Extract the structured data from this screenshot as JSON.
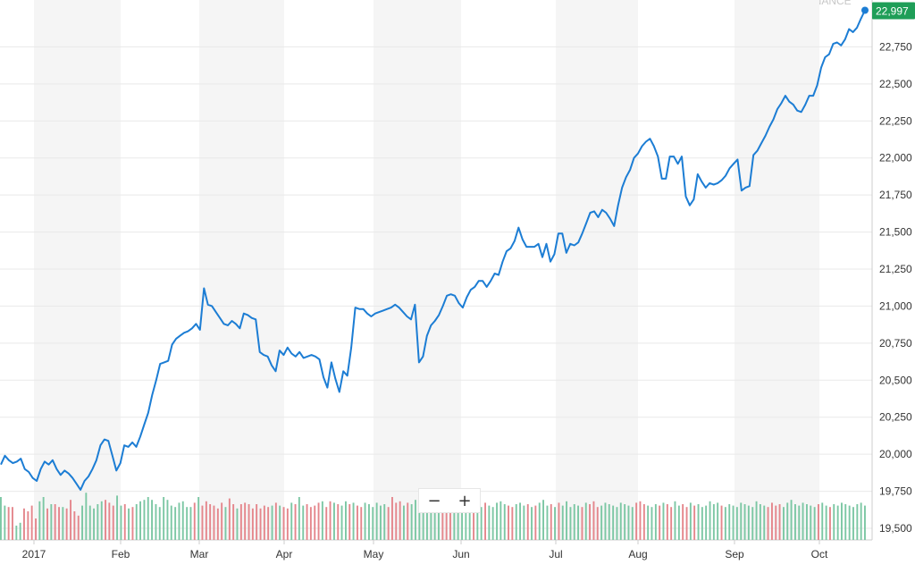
{
  "chart_data": {
    "type": "line",
    "x_labels": [
      "2017",
      "Feb",
      "Mar",
      "Apr",
      "May",
      "Jun",
      "Jul",
      "Aug",
      "Sep",
      "Oct"
    ],
    "y_ticks": [
      "19,500",
      "19,750",
      "20,000",
      "20,250",
      "20,500",
      "20,750",
      "21,000",
      "21,250",
      "21,500",
      "21,750",
      "22,000",
      "22,250",
      "22,500",
      "22,750"
    ],
    "ylim": [
      19500,
      23000
    ],
    "last_value": 22997,
    "last_label": "22,997",
    "series": [
      {
        "values": [
          19930,
          19990,
          19960,
          19940,
          19950,
          19970,
          19900,
          19880,
          19840,
          19820,
          19900,
          19950,
          19930,
          19960,
          19900,
          19860,
          19890,
          19870,
          19840,
          19800,
          19760,
          19820,
          19850,
          19900,
          19960,
          20060,
          20100,
          20090,
          19990,
          19890,
          19940,
          20060,
          20050,
          20080,
          20050,
          20120,
          20200,
          20280,
          20400,
          20500,
          20610,
          20620,
          20630,
          20740,
          20780,
          20800,
          20820,
          20830,
          20850,
          20880,
          20840,
          21120,
          21010,
          21000,
          20960,
          20920,
          20880,
          20870,
          20900,
          20880,
          20850,
          20950,
          20940,
          20920,
          20910,
          20690,
          20670,
          20660,
          20600,
          20560,
          20700,
          20670,
          20720,
          20680,
          20660,
          20690,
          20650,
          20660,
          20670,
          20660,
          20640,
          20520,
          20450,
          20620,
          20510,
          20420,
          20560,
          20530,
          20720,
          20990,
          20980,
          20980,
          20950,
          20930,
          20950,
          20960,
          20970,
          20980,
          20990,
          21010,
          20990,
          20960,
          20930,
          20910,
          21010,
          20620,
          20660,
          20800,
          20870,
          20900,
          20940,
          21000,
          21070,
          21080,
          21070,
          21020,
          20990,
          21060,
          21110,
          21130,
          21170,
          21170,
          21130,
          21170,
          21220,
          21210,
          21300,
          21370,
          21390,
          21440,
          21530,
          21450,
          21400,
          21400,
          21400,
          21420,
          21330,
          21420,
          21300,
          21350,
          21490,
          21490,
          21360,
          21420,
          21410,
          21430,
          21490,
          21560,
          21630,
          21640,
          21600,
          21650,
          21630,
          21590,
          21540,
          21680,
          21800,
          21870,
          21920,
          22000,
          22030,
          22080,
          22110,
          22130,
          22080,
          22010,
          21860,
          21860,
          22010,
          22010,
          21960,
          22010,
          21740,
          21680,
          21720,
          21890,
          21840,
          21800,
          21830,
          21820,
          21830,
          21850,
          21880,
          21930,
          21960,
          21990,
          21780,
          21800,
          21810,
          22020,
          22050,
          22100,
          22150,
          22210,
          22260,
          22330,
          22370,
          22420,
          22380,
          22360,
          22320,
          22310,
          22360,
          22420,
          22420,
          22490,
          22610,
          22680,
          22700,
          22770,
          22780,
          22760,
          22800,
          22870,
          22850,
          22880,
          22940,
          22997
        ]
      },
      {
        "name": "volume",
        "values": [
          0.3,
          0.24,
          0.23,
          0.23,
          0.1,
          0.12,
          0.22,
          0.2,
          0.24,
          0.15,
          0.27,
          0.3,
          0.22,
          0.25,
          0.25,
          0.23,
          0.23,
          0.22,
          0.28,
          0.2,
          0.17,
          0.24,
          0.33,
          0.24,
          0.22,
          0.25,
          0.27,
          0.28,
          0.26,
          0.24,
          0.31,
          0.24,
          0.25,
          0.22,
          0.23,
          0.25,
          0.27,
          0.28,
          0.3,
          0.28,
          0.25,
          0.23,
          0.3,
          0.28,
          0.24,
          0.23,
          0.26,
          0.27,
          0.23,
          0.23,
          0.26,
          0.3,
          0.24,
          0.27,
          0.25,
          0.24,
          0.22,
          0.26,
          0.23,
          0.29,
          0.25,
          0.22,
          0.25,
          0.26,
          0.25,
          0.22,
          0.25,
          0.22,
          0.24,
          0.23,
          0.24,
          0.26,
          0.24,
          0.23,
          0.22,
          0.26,
          0.25,
          0.3,
          0.24,
          0.25,
          0.23,
          0.24,
          0.26,
          0.27,
          0.23,
          0.27,
          0.26,
          0.25,
          0.24,
          0.27,
          0.25,
          0.26,
          0.24,
          0.23,
          0.26,
          0.25,
          0.23,
          0.26,
          0.24,
          0.25,
          0.23,
          0.3,
          0.26,
          0.27,
          0.24,
          0.26,
          0.25,
          0.28,
          0.23,
          0.25,
          0.24,
          0.26,
          0.27,
          0.22,
          0.26,
          0.25,
          0.23,
          0.24,
          0.26,
          0.25,
          0.23,
          0.24,
          0.25,
          0.25,
          0.23,
          0.26,
          0.24,
          0.23,
          0.26,
          0.27,
          0.25,
          0.24,
          0.23,
          0.25,
          0.26,
          0.24,
          0.25,
          0.23,
          0.24,
          0.26,
          0.28,
          0.24,
          0.25,
          0.23,
          0.26,
          0.24,
          0.27,
          0.23,
          0.25,
          0.24,
          0.23,
          0.26,
          0.25,
          0.27,
          0.23,
          0.24,
          0.26,
          0.25,
          0.24,
          0.23,
          0.26,
          0.25,
          0.24,
          0.23,
          0.26,
          0.27,
          0.25,
          0.24,
          0.23,
          0.25,
          0.24,
          0.26,
          0.25,
          0.23,
          0.27,
          0.24,
          0.25,
          0.23,
          0.26,
          0.24,
          0.25,
          0.23,
          0.24,
          0.27,
          0.25,
          0.26,
          0.24,
          0.23,
          0.25,
          0.24,
          0.23,
          0.26,
          0.25,
          0.24,
          0.23,
          0.27,
          0.25,
          0.24,
          0.23,
          0.26,
          0.24,
          0.25,
          0.23,
          0.26,
          0.28,
          0.25,
          0.24,
          0.26,
          0.25,
          0.24,
          0.23,
          0.25,
          0.26,
          0.24,
          0.23,
          0.25,
          0.24,
          0.26,
          0.25,
          0.24,
          0.23,
          0.25,
          0.26,
          0.24
        ]
      }
    ],
    "grid": true,
    "colors": {
      "line": "#1c7dd4",
      "badge": "#1f9e58",
      "bar_up": "#7cc7a4",
      "bar_down": "#e4868c",
      "band": "#f5f5f5"
    }
  },
  "watermark": "FINANCE",
  "zoom": {
    "minus": "−",
    "plus": "+"
  }
}
